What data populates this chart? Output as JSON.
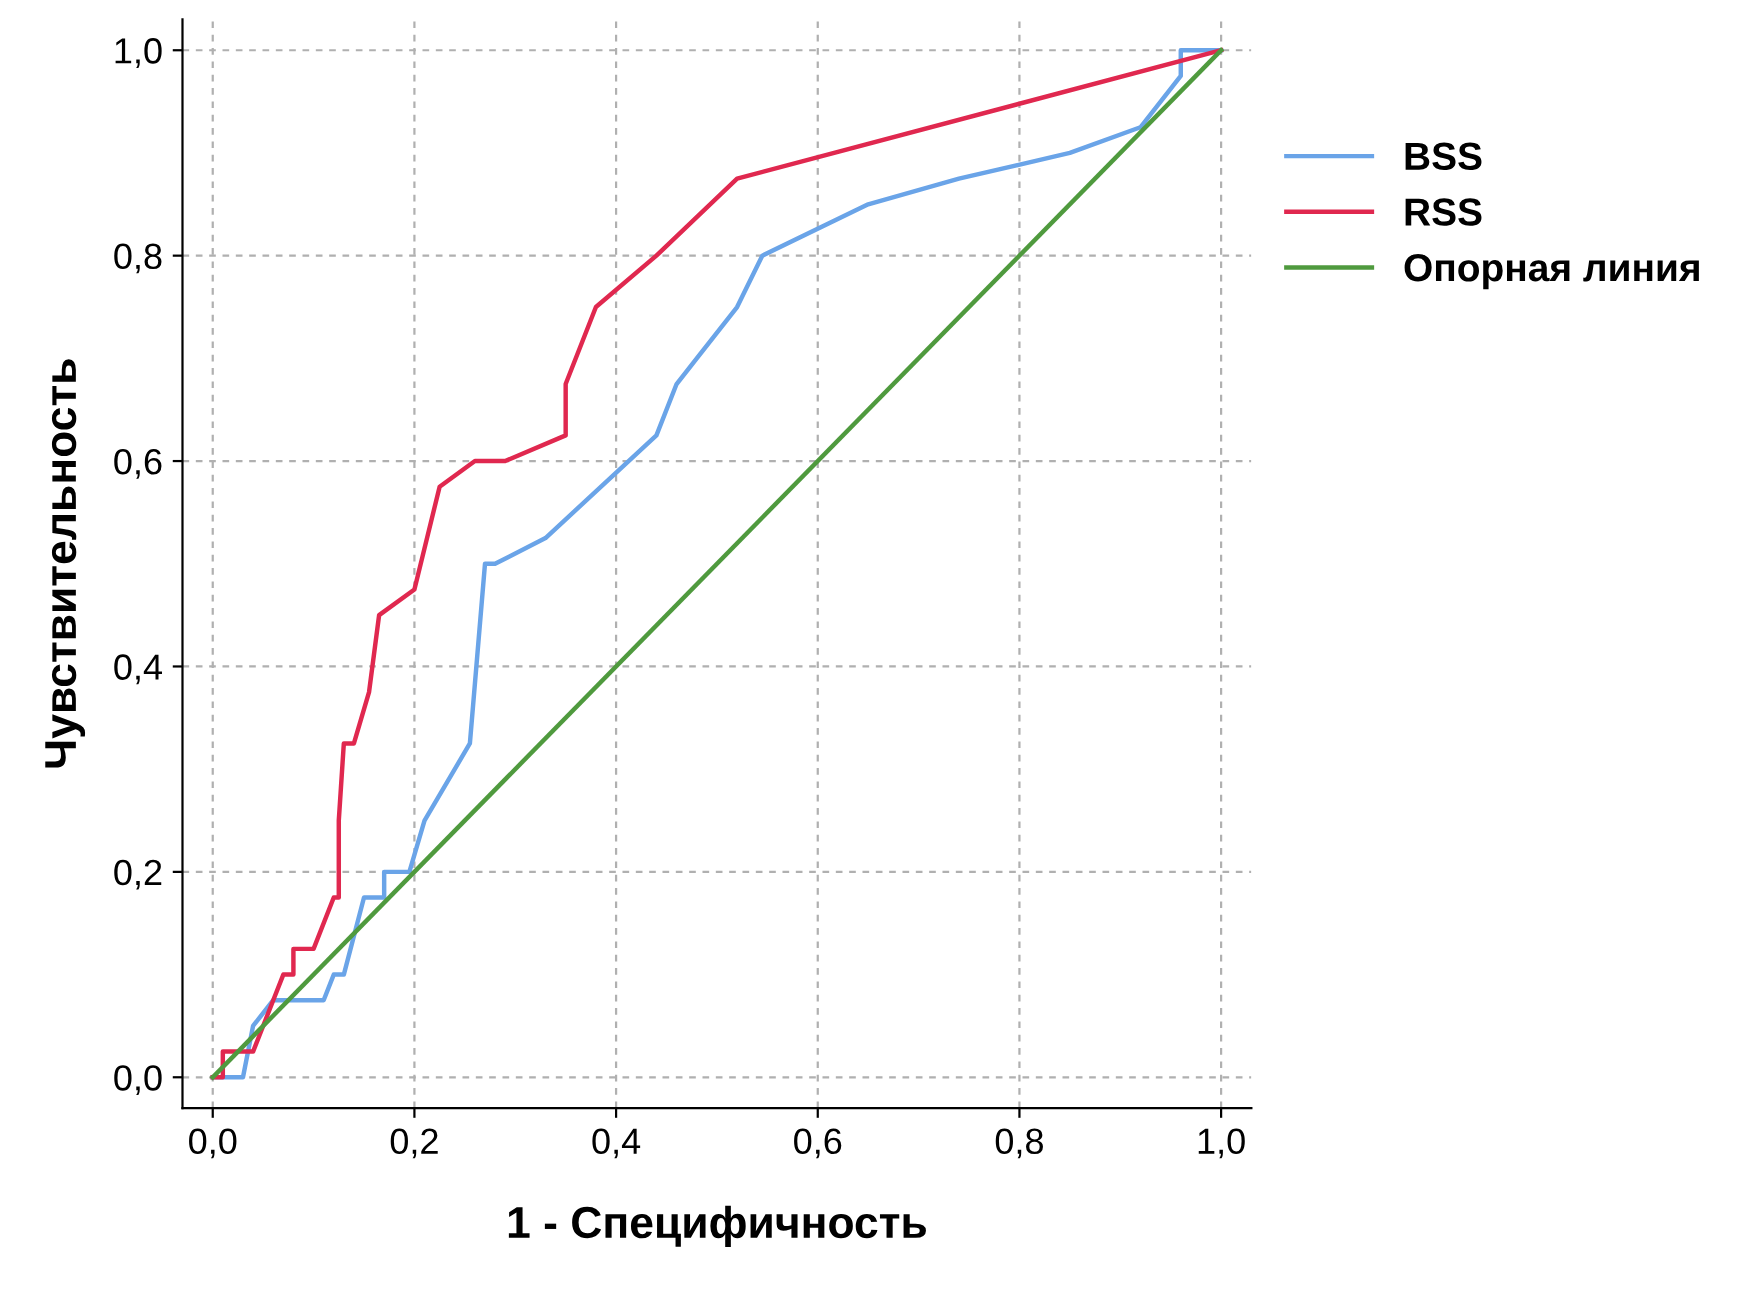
{
  "chart_data": {
    "type": "line",
    "xlabel": "1 - Специфичность",
    "ylabel": "Чувствительность",
    "xlim": [
      -0.03,
      1.03
    ],
    "ylim": [
      -0.03,
      1.03
    ],
    "xticks": [
      {
        "value": 0,
        "label": "0,0"
      },
      {
        "value": 0.2,
        "label": "0,2"
      },
      {
        "value": 0.4,
        "label": "0,4"
      },
      {
        "value": 0.6,
        "label": "0,6"
      },
      {
        "value": 0.8,
        "label": "0,8"
      },
      {
        "value": 1,
        "label": "1,0"
      }
    ],
    "yticks": [
      {
        "value": 0,
        "label": "0,0"
      },
      {
        "value": 0.2,
        "label": "0,2"
      },
      {
        "value": 0.4,
        "label": "0,4"
      },
      {
        "value": 0.6,
        "label": "0,6"
      },
      {
        "value": 0.8,
        "label": "0,8"
      },
      {
        "value": 1,
        "label": "1,0"
      }
    ],
    "grid": true,
    "legend": "right",
    "marker": "none",
    "line_style": "solid",
    "series": [
      {
        "name": "BSS",
        "color": "#6aa4e8",
        "x": [
          0,
          0.03,
          0.04,
          0.06,
          0.11,
          0.12,
          0.13,
          0.15,
          0.17,
          0.17,
          0.195,
          0.21,
          0.255,
          0.27,
          0.28,
          0.33,
          0.44,
          0.46,
          0.48,
          0.52,
          0.545,
          0.65,
          0.74,
          0.85,
          0.92,
          0.96,
          0.96,
          1
        ],
        "values": [
          0,
          0,
          0.05,
          0.075,
          0.075,
          0.1,
          0.1,
          0.175,
          0.175,
          0.2,
          0.2,
          0.25,
          0.325,
          0.5,
          0.5,
          0.525,
          0.625,
          0.675,
          0.7,
          0.75,
          0.8,
          0.85,
          0.875,
          0.9,
          0.925,
          0.975,
          1,
          1
        ]
      },
      {
        "name": "RSS",
        "color": "#e0284f",
        "x": [
          0,
          0.01,
          0.01,
          0.04,
          0.06,
          0.07,
          0.08,
          0.08,
          0.1,
          0.12,
          0.125,
          0.125,
          0.13,
          0.14,
          0.155,
          0.165,
          0.2,
          0.225,
          0.26,
          0.29,
          0.35,
          0.35,
          0.38,
          0.44,
          0.52,
          1
        ],
        "values": [
          0,
          0,
          0.025,
          0.025,
          0.075,
          0.1,
          0.1,
          0.125,
          0.125,
          0.175,
          0.175,
          0.25,
          0.325,
          0.325,
          0.375,
          0.45,
          0.475,
          0.575,
          0.6,
          0.6,
          0.625,
          0.675,
          0.75,
          0.8,
          0.875,
          1
        ]
      },
      {
        "name": "Опорная линия",
        "color": "#4f9a3e",
        "x": [
          0,
          1
        ],
        "values": [
          0,
          1
        ]
      }
    ]
  }
}
